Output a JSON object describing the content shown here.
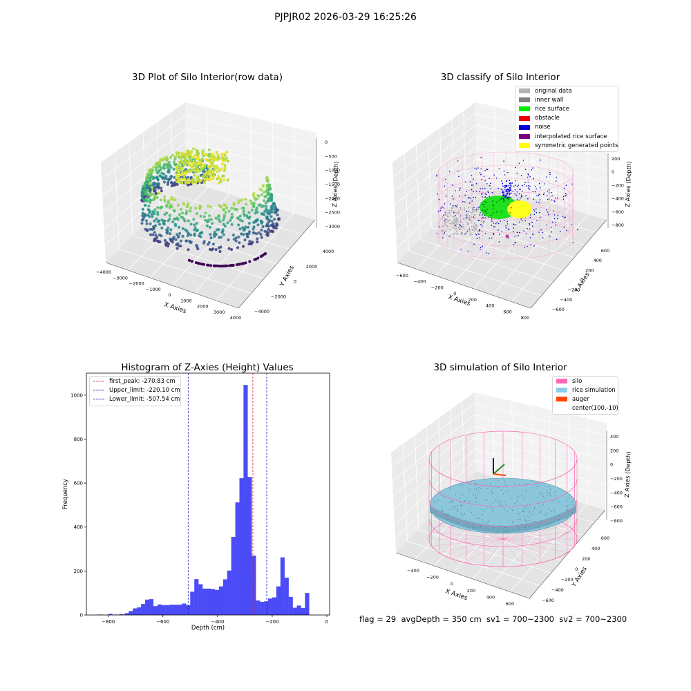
{
  "figure": {
    "suptitle": "PJPJR02 2026-03-29 16:25:26"
  },
  "colors": {
    "pane_left": "#ebebeb",
    "pane_right": "#f2f2f2",
    "pane_floor": "#e4e4e4",
    "grid": "#ffffff",
    "hist_bar": "#4b4bf7",
    "peak_line": "#d62728",
    "limit_line": "#2020c0"
  },
  "chart_data": [
    {
      "type": "scatter",
      "kind": "3d-scatter",
      "title": "3D Plot of Silo Interior(row data)",
      "xlabel": "X Axies",
      "ylabel": "Y Axies",
      "zlabel": "Z Axies (Depth)",
      "xticks": [
        "−4000",
        "−3000",
        "−2000",
        "−1000",
        "0",
        "1000",
        "2000",
        "3000",
        "4000"
      ],
      "yticks": [
        "−4000",
        "−2000",
        "0",
        "2000",
        "4000"
      ],
      "zticks": [
        "0",
        "−500",
        "−1000",
        "−1500",
        "−2000",
        "−2500",
        "−3000"
      ],
      "colormap": "viridis",
      "grid": true
    },
    {
      "type": "scatter",
      "kind": "3d-scatter",
      "title": "3D classify of Silo Interior",
      "xlabel": "X Axies",
      "ylabel": "Y Axies",
      "zlabel": "Z Axies (Depth)",
      "xticks": [
        "−600",
        "−400",
        "−200",
        "0",
        "200",
        "400",
        "600",
        "800"
      ],
      "yticks": [
        "−600",
        "−400",
        "−200",
        "0",
        "200",
        "400",
        "600"
      ],
      "zticks": [
        "200",
        "0",
        "−200",
        "−400",
        "−600",
        "−800"
      ],
      "legend": [
        {
          "label": "original data",
          "color": "#b3b3b3"
        },
        {
          "label": "inner wall",
          "color": "#808080"
        },
        {
          "label": "rice surface",
          "color": "#00ee00"
        },
        {
          "label": "obstacle",
          "color": "#ee0000"
        },
        {
          "label": "noise",
          "color": "#0000dd"
        },
        {
          "label": "interpolated rice surface",
          "color": "#800080"
        },
        {
          "label": "symmetric generated points",
          "color": "#ffff00"
        }
      ],
      "legend_position": "top-right",
      "grid": true
    },
    {
      "type": "bar",
      "kind": "histogram",
      "title": "Histogram of Z-Axies (Height) Values",
      "xlabel": "Depth (cm)",
      "ylabel": "Frequency",
      "xlim": [
        -880,
        10
      ],
      "ylim": [
        0,
        1100
      ],
      "xticks": [
        -800,
        -600,
        -400,
        -200,
        0
      ],
      "yticks": [
        0,
        200,
        400,
        600,
        800,
        1000
      ],
      "bin_width": 15.5,
      "bins": [
        [
          -840,
          2
        ],
        [
          -820,
          1
        ],
        [
          -800,
          5
        ],
        [
          -780,
          2
        ],
        [
          -760,
          4
        ],
        [
          -740,
          8
        ],
        [
          -725,
          18
        ],
        [
          -710,
          30
        ],
        [
          -695,
          35
        ],
        [
          -680,
          50
        ],
        [
          -665,
          70
        ],
        [
          -650,
          72
        ],
        [
          -635,
          40
        ],
        [
          -620,
          48
        ],
        [
          -605,
          45
        ],
        [
          -590,
          45
        ],
        [
          -575,
          47
        ],
        [
          -560,
          47
        ],
        [
          -545,
          47
        ],
        [
          -530,
          52
        ],
        [
          -515,
          45
        ],
        [
          -500,
          106
        ],
        [
          -485,
          163
        ],
        [
          -470,
          140
        ],
        [
          -455,
          120
        ],
        [
          -440,
          120
        ],
        [
          -425,
          118
        ],
        [
          -410,
          114
        ],
        [
          -395,
          130
        ],
        [
          -380,
          162
        ],
        [
          -365,
          202
        ],
        [
          -350,
          355
        ],
        [
          -335,
          512
        ],
        [
          -320,
          622
        ],
        [
          -305,
          1046
        ],
        [
          -290,
          628
        ],
        [
          -275,
          270
        ],
        [
          -260,
          66
        ],
        [
          -245,
          60
        ],
        [
          -230,
          62
        ],
        [
          -215,
          75
        ],
        [
          -200,
          80
        ],
        [
          -185,
          130
        ],
        [
          -170,
          262
        ],
        [
          -155,
          170
        ],
        [
          -140,
          82
        ],
        [
          -125,
          33
        ],
        [
          -110,
          43
        ],
        [
          -95,
          32
        ],
        [
          -80,
          100
        ]
      ],
      "vlines": [
        {
          "label": "first_peak: -270.83 cm",
          "x": -270.83,
          "color": "#d62728"
        },
        {
          "label": "Upper_limit: -220.10 cm",
          "x": -220.1,
          "color": "#2020c0"
        },
        {
          "label": "Lower_limit: -507.54 cm",
          "x": -507.54,
          "color": "#2020c0"
        }
      ],
      "legend_position": "top-left"
    },
    {
      "type": "scatter",
      "kind": "3d-surface",
      "title": "3D simulation of Silo Interior",
      "xlabel": "X Axies",
      "ylabel": "Y Axies",
      "zlabel": "Z Axies (Depth)",
      "xticks": [
        "−400",
        "−200",
        "0",
        "200",
        "400",
        "600"
      ],
      "yticks": [
        "−600",
        "−400",
        "−200",
        "0",
        "200",
        "400",
        "600"
      ],
      "zticks": [
        "400",
        "200",
        "0",
        "−200",
        "−400",
        "−600",
        "−800"
      ],
      "legend": [
        {
          "label": "silo",
          "color": "#ff69b4"
        },
        {
          "label": "rice simulation",
          "color": "#87ceeb"
        },
        {
          "label": "auger",
          "color": "#ff4500"
        },
        {
          "label": "center(100,-10)",
          "color": ""
        }
      ],
      "legend_position": "top-right",
      "grid": true
    }
  ],
  "footer": {
    "text": "flag = 29  avgDepth = 350 cm  sv1 = 700~2300  sv2 = 700~2300"
  }
}
